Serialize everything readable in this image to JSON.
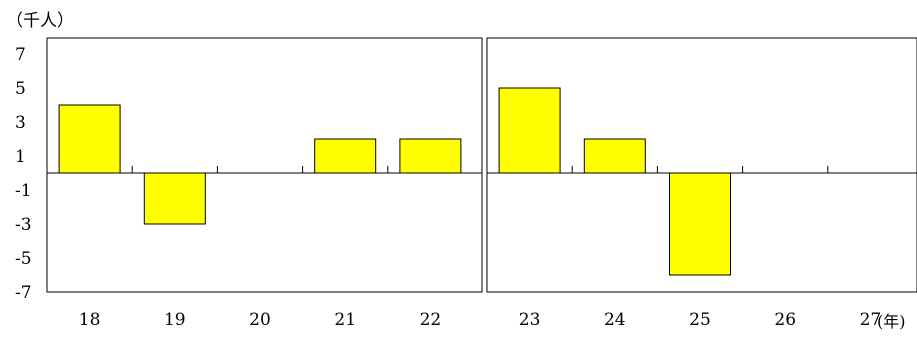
{
  "chart_data": {
    "type": "bar",
    "ylabel": "（千人）",
    "xlabel": "(年)",
    "categories": [
      "18",
      "19",
      "20",
      "21",
      "22",
      "23",
      "24",
      "25",
      "26",
      "27"
    ],
    "values": [
      4,
      -3,
      0,
      2,
      2,
      5,
      2,
      -6,
      0,
      0
    ],
    "yticks": [
      7,
      5,
      3,
      1,
      -1,
      -3,
      -5,
      -7
    ],
    "ytick_labels": [
      "7",
      "5",
      "3",
      "1",
      "-1",
      "-3",
      "-5",
      "-7"
    ],
    "ylim": [
      -7,
      8
    ],
    "panels": [
      {
        "categories": [
          "18",
          "19",
          "20",
          "21",
          "22"
        ]
      },
      {
        "categories": [
          "23",
          "24",
          "25",
          "26",
          "27"
        ]
      }
    ],
    "colors": {
      "bar_fill": "#ffff00",
      "bar_stroke": "#000000"
    },
    "grid": false,
    "legend": "none"
  }
}
